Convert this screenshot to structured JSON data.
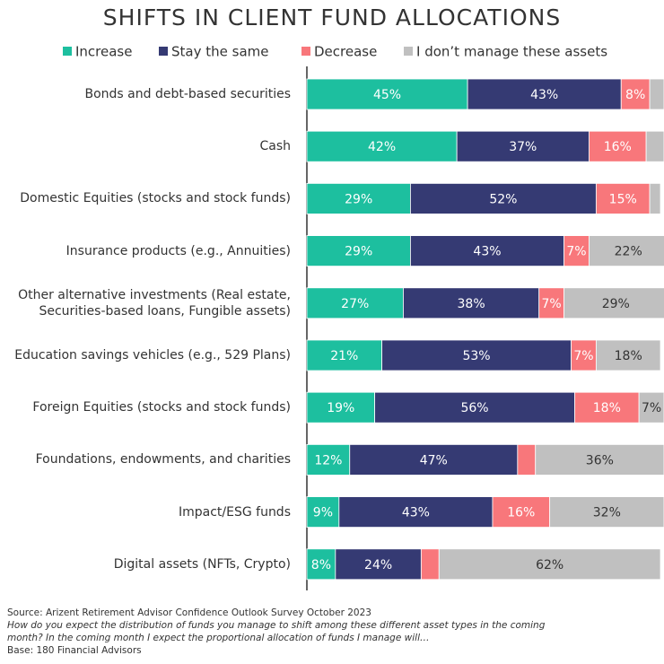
{
  "chart_data": {
    "type": "stacked-bar-horizontal",
    "title": "SHIFTS IN CLIENT FUND ALLOCATIONS",
    "categories": [
      "Bonds and debt-based securities",
      "Cash",
      "Domestic Equities (stocks and stock funds)",
      "Insurance products (e.g., Annuities)",
      "Other alternative investments (Real estate, Securities-based loans, Fungible assets)",
      "Education savings vehicles (e.g., 529 Plans)",
      "Foreign Equities (stocks and stock funds)",
      "Foundations, endowments, and charities",
      "Impact/ESG funds",
      "Digital assets (NFTs, Crypto)"
    ],
    "series": [
      {
        "name": "Increase",
        "color": "#1dbf9f",
        "values": [
          45,
          42,
          29,
          29,
          27,
          21,
          19,
          12,
          9,
          8
        ],
        "value_labels": [
          "45%",
          "42%",
          "29%",
          "29%",
          "27%",
          "21%",
          "19%",
          "12%",
          "9%",
          "8%"
        ]
      },
      {
        "name": "Stay the same",
        "color": "#353a73",
        "values": [
          43,
          37,
          52,
          43,
          38,
          53,
          56,
          47,
          43,
          24
        ],
        "value_labels": [
          "43%",
          "37%",
          "52%",
          "43%",
          "38%",
          "53%",
          "56%",
          "47%",
          "43%",
          "24%"
        ]
      },
      {
        "name": "Decrease",
        "color": "#f8777b",
        "values": [
          8,
          16,
          15,
          7,
          7,
          7,
          18,
          5,
          16,
          5
        ],
        "value_labels": [
          "8%",
          "16%",
          "15%",
          "7%",
          "7%",
          "7%",
          "18%",
          null,
          "16%",
          null
        ]
      },
      {
        "name": "I don’t manage these assets",
        "color": "#c0c0c0",
        "values": [
          4,
          5,
          3,
          22,
          29,
          18,
          7,
          36,
          32,
          62
        ],
        "value_labels": [
          null,
          null,
          null,
          "22%",
          "29%",
          "18%",
          "7%",
          "36%",
          "32%",
          "62%"
        ]
      }
    ],
    "xlim": [
      0,
      100
    ],
    "notes": [
      "Source: Arizent Retirement Advisor Confidence Outlook Survey October 2023",
      "How do you expect the distribution of funds you manage to shift among these different asset types in the coming month? In the coming month I expect the proportional allocation of funds I manage will…",
      "Base: 180 Financial Advisors"
    ]
  }
}
